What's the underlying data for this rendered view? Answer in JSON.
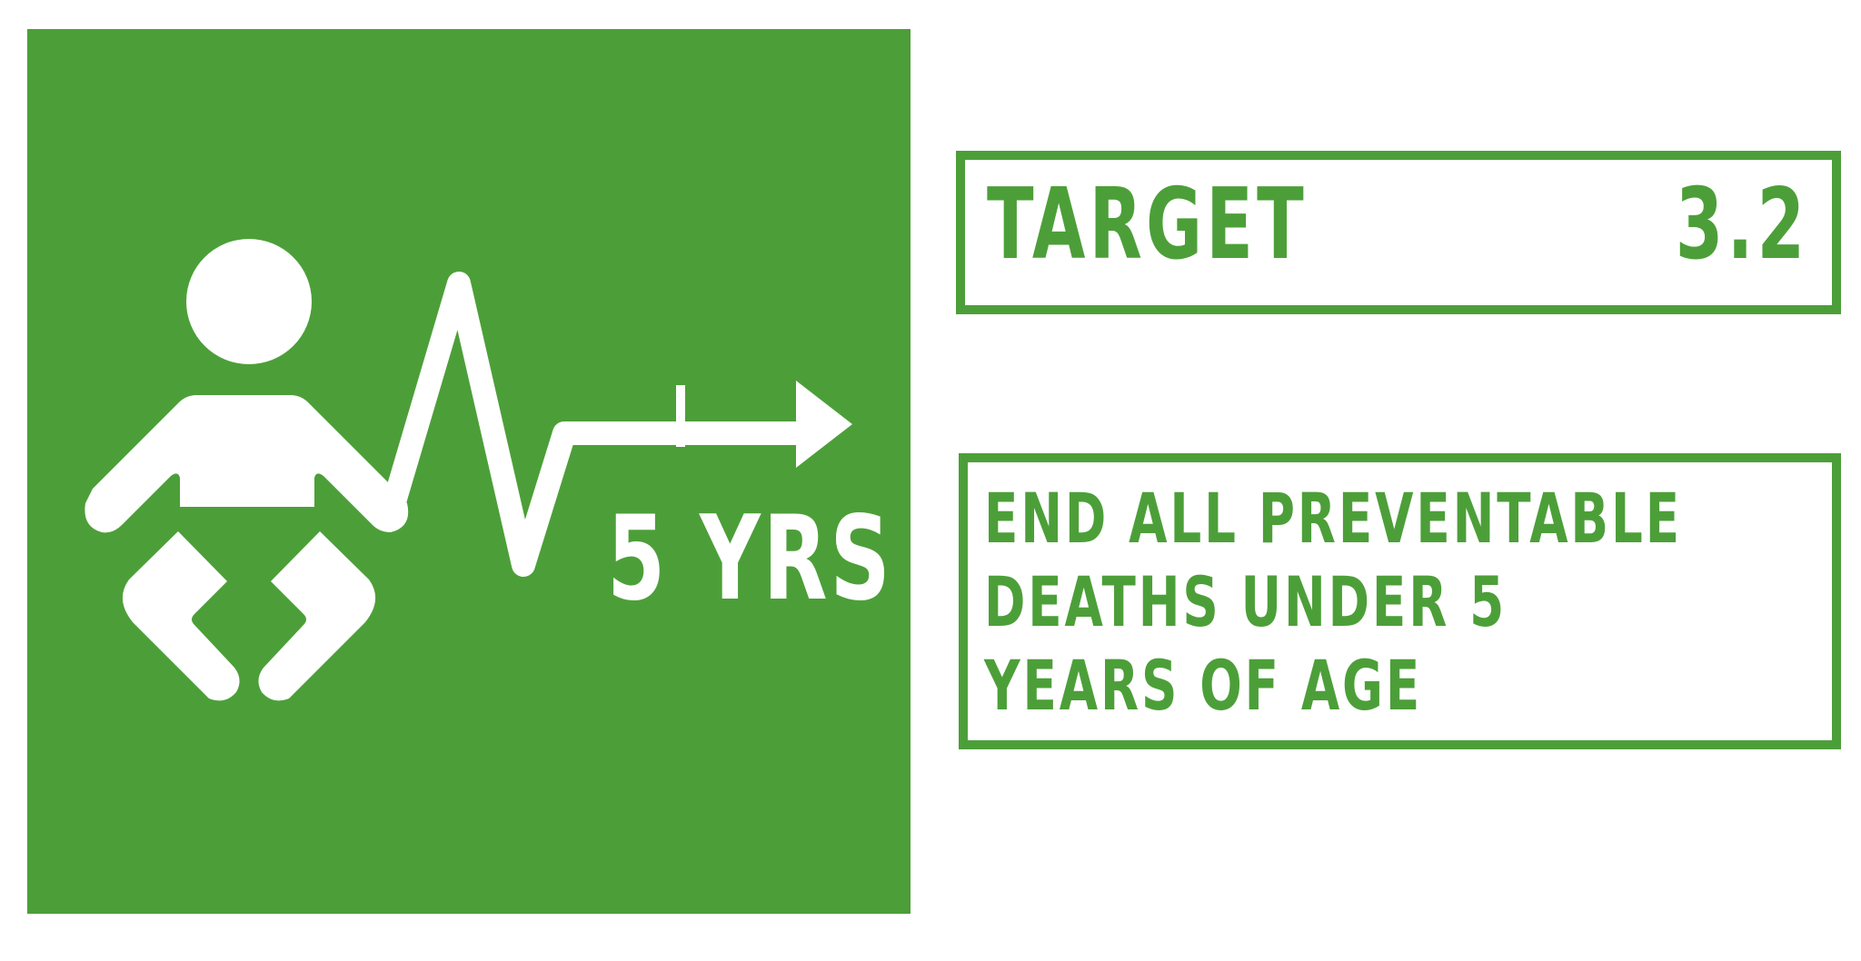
{
  "icon": {
    "name": "child-heartbeat-icon",
    "background_color": "#4c9f38",
    "foreground_color": "#ffffff",
    "label": "5 YRS"
  },
  "target": {
    "label": "TARGET",
    "number": "3.2"
  },
  "description": {
    "lines": [
      "END ALL PREVENTABLE",
      "DEATHS UNDER 5",
      "YEARS OF AGE"
    ]
  },
  "colors": {
    "accent": "#4c9f38",
    "text_on_accent": "#ffffff"
  }
}
